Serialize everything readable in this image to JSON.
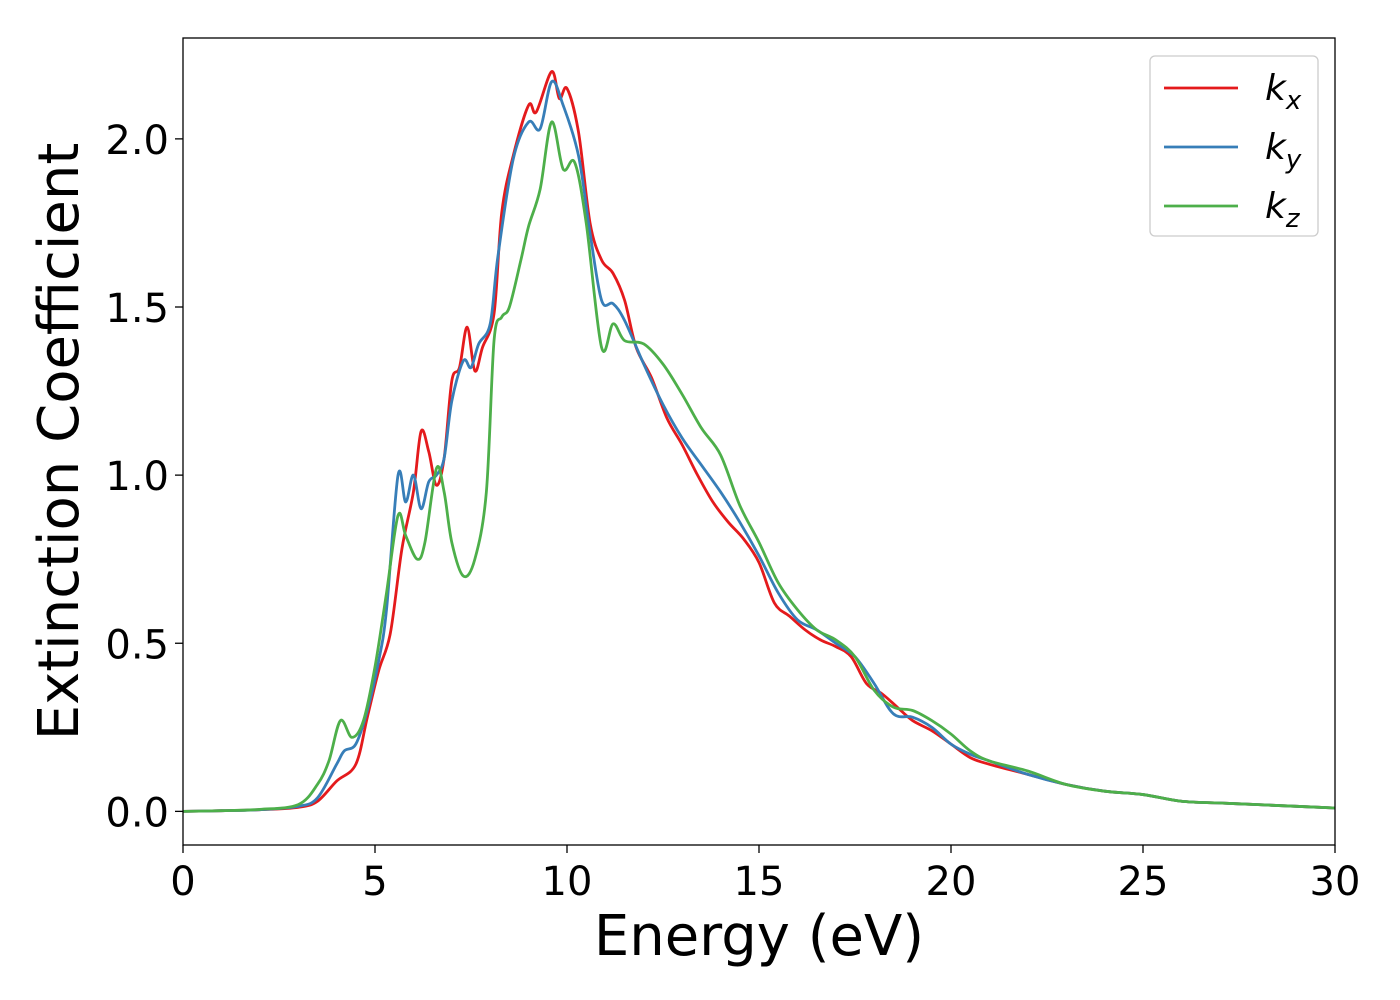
{
  "chart_data": {
    "type": "line",
    "title": "",
    "xlabel": "Energy (eV)",
    "ylabel": "Extinction Coefficient",
    "xlim": [
      0,
      30
    ],
    "ylim": [
      -0.1,
      2.3
    ],
    "xticks": [
      0,
      5,
      10,
      15,
      20,
      25,
      30
    ],
    "xtick_labels": [
      "0",
      "5",
      "10",
      "15",
      "20",
      "25",
      "30"
    ],
    "yticks": [
      0.0,
      0.5,
      1.0,
      1.5,
      2.0
    ],
    "ytick_labels": [
      "0.0",
      "0.5",
      "1.0",
      "1.5",
      "2.0"
    ],
    "grid": false,
    "legend_position": "top-right",
    "series": [
      {
        "name": "k",
        "subscript": "x",
        "color": "#e41a1c",
        "points": [
          [
            0,
            0
          ],
          [
            1,
            0.002
          ],
          [
            2,
            0.005
          ],
          [
            3,
            0.012
          ],
          [
            3.5,
            0.03
          ],
          [
            4,
            0.09
          ],
          [
            4.5,
            0.14
          ],
          [
            4.8,
            0.28
          ],
          [
            5.1,
            0.42
          ],
          [
            5.4,
            0.53
          ],
          [
            5.7,
            0.78
          ],
          [
            6,
            0.95
          ],
          [
            6.2,
            1.13
          ],
          [
            6.4,
            1.07
          ],
          [
            6.6,
            0.97
          ],
          [
            6.8,
            1.05
          ],
          [
            7,
            1.28
          ],
          [
            7.2,
            1.32
          ],
          [
            7.4,
            1.44
          ],
          [
            7.6,
            1.31
          ],
          [
            7.8,
            1.38
          ],
          [
            8.1,
            1.48
          ],
          [
            8.3,
            1.78
          ],
          [
            8.6,
            1.95
          ],
          [
            9.0,
            2.1
          ],
          [
            9.2,
            2.08
          ],
          [
            9.6,
            2.2
          ],
          [
            9.8,
            2.12
          ],
          [
            10,
            2.15
          ],
          [
            10.3,
            2.02
          ],
          [
            10.6,
            1.75
          ],
          [
            10.9,
            1.64
          ],
          [
            11.2,
            1.6
          ],
          [
            11.5,
            1.52
          ],
          [
            11.8,
            1.38
          ],
          [
            12.2,
            1.29
          ],
          [
            12.6,
            1.17
          ],
          [
            13,
            1.09
          ],
          [
            13.4,
            1.0
          ],
          [
            13.8,
            0.92
          ],
          [
            14.2,
            0.86
          ],
          [
            14.6,
            0.81
          ],
          [
            15,
            0.74
          ],
          [
            15.4,
            0.62
          ],
          [
            15.8,
            0.58
          ],
          [
            16.2,
            0.54
          ],
          [
            16.6,
            0.51
          ],
          [
            17,
            0.49
          ],
          [
            17.4,
            0.46
          ],
          [
            17.8,
            0.38
          ],
          [
            18.2,
            0.35
          ],
          [
            18.6,
            0.31
          ],
          [
            19,
            0.27
          ],
          [
            19.5,
            0.24
          ],
          [
            20,
            0.2
          ],
          [
            20.5,
            0.16
          ],
          [
            21,
            0.14
          ],
          [
            22,
            0.11
          ],
          [
            23,
            0.08
          ],
          [
            24,
            0.06
          ],
          [
            25,
            0.05
          ],
          [
            26,
            0.03
          ],
          [
            27,
            0.025
          ],
          [
            28,
            0.02
          ],
          [
            29,
            0.015
          ],
          [
            30,
            0.01
          ]
        ]
      },
      {
        "name": "k",
        "subscript": "y",
        "color": "#377eb8",
        "points": [
          [
            0,
            0
          ],
          [
            1,
            0.002
          ],
          [
            2,
            0.005
          ],
          [
            3,
            0.015
          ],
          [
            3.5,
            0.04
          ],
          [
            4,
            0.14
          ],
          [
            4.2,
            0.18
          ],
          [
            4.5,
            0.2
          ],
          [
            4.8,
            0.3
          ],
          [
            5.1,
            0.45
          ],
          [
            5.3,
            0.6
          ],
          [
            5.6,
            1.0
          ],
          [
            5.8,
            0.92
          ],
          [
            6,
            1.0
          ],
          [
            6.2,
            0.9
          ],
          [
            6.4,
            0.98
          ],
          [
            6.6,
            1.0
          ],
          [
            6.8,
            1.05
          ],
          [
            7,
            1.22
          ],
          [
            7.3,
            1.34
          ],
          [
            7.5,
            1.32
          ],
          [
            7.7,
            1.39
          ],
          [
            8.0,
            1.45
          ],
          [
            8.2,
            1.65
          ],
          [
            8.6,
            1.94
          ],
          [
            9.0,
            2.05
          ],
          [
            9.3,
            2.03
          ],
          [
            9.6,
            2.17
          ],
          [
            9.9,
            2.1
          ],
          [
            10.3,
            1.95
          ],
          [
            10.6,
            1.72
          ],
          [
            10.9,
            1.52
          ],
          [
            11.2,
            1.51
          ],
          [
            11.5,
            1.46
          ],
          [
            12,
            1.33
          ],
          [
            12.5,
            1.21
          ],
          [
            13,
            1.11
          ],
          [
            13.5,
            1.03
          ],
          [
            14,
            0.95
          ],
          [
            14.5,
            0.86
          ],
          [
            15,
            0.76
          ],
          [
            15.5,
            0.65
          ],
          [
            16,
            0.57
          ],
          [
            16.5,
            0.54
          ],
          [
            17,
            0.5
          ],
          [
            17.5,
            0.46
          ],
          [
            18,
            0.38
          ],
          [
            18.5,
            0.29
          ],
          [
            19,
            0.28
          ],
          [
            19.5,
            0.25
          ],
          [
            20,
            0.2
          ],
          [
            20.5,
            0.17
          ],
          [
            21,
            0.15
          ],
          [
            22,
            0.11
          ],
          [
            23,
            0.08
          ],
          [
            24,
            0.06
          ],
          [
            25,
            0.05
          ],
          [
            26,
            0.03
          ],
          [
            27,
            0.025
          ],
          [
            28,
            0.02
          ],
          [
            29,
            0.015
          ],
          [
            30,
            0.01
          ]
        ]
      },
      {
        "name": "k",
        "subscript": "z",
        "color": "#4daf4a",
        "points": [
          [
            0,
            0
          ],
          [
            1,
            0.002
          ],
          [
            2,
            0.006
          ],
          [
            3,
            0.02
          ],
          [
            3.5,
            0.08
          ],
          [
            3.8,
            0.15
          ],
          [
            4.1,
            0.27
          ],
          [
            4.4,
            0.22
          ],
          [
            4.7,
            0.27
          ],
          [
            5.0,
            0.43
          ],
          [
            5.3,
            0.65
          ],
          [
            5.6,
            0.88
          ],
          [
            5.8,
            0.82
          ],
          [
            6.1,
            0.75
          ],
          [
            6.3,
            0.8
          ],
          [
            6.6,
            1.02
          ],
          [
            6.8,
            0.95
          ],
          [
            7,
            0.8
          ],
          [
            7.3,
            0.7
          ],
          [
            7.6,
            0.75
          ],
          [
            7.9,
            0.95
          ],
          [
            8.1,
            1.4
          ],
          [
            8.3,
            1.47
          ],
          [
            8.5,
            1.5
          ],
          [
            8.8,
            1.64
          ],
          [
            9.0,
            1.74
          ],
          [
            9.3,
            1.85
          ],
          [
            9.6,
            2.05
          ],
          [
            9.9,
            1.91
          ],
          [
            10.2,
            1.93
          ],
          [
            10.5,
            1.75
          ],
          [
            10.9,
            1.38
          ],
          [
            11.2,
            1.45
          ],
          [
            11.5,
            1.4
          ],
          [
            12,
            1.39
          ],
          [
            12.5,
            1.33
          ],
          [
            13,
            1.24
          ],
          [
            13.5,
            1.14
          ],
          [
            14,
            1.06
          ],
          [
            14.5,
            0.91
          ],
          [
            15,
            0.8
          ],
          [
            15.5,
            0.68
          ],
          [
            16,
            0.6
          ],
          [
            16.5,
            0.54
          ],
          [
            17,
            0.51
          ],
          [
            17.5,
            0.46
          ],
          [
            18,
            0.36
          ],
          [
            18.5,
            0.31
          ],
          [
            19,
            0.3
          ],
          [
            19.5,
            0.27
          ],
          [
            20,
            0.23
          ],
          [
            20.5,
            0.18
          ],
          [
            21,
            0.15
          ],
          [
            22,
            0.12
          ],
          [
            23,
            0.08
          ],
          [
            24,
            0.06
          ],
          [
            25,
            0.05
          ],
          [
            26,
            0.03
          ],
          [
            27,
            0.025
          ],
          [
            28,
            0.02
          ],
          [
            29,
            0.015
          ],
          [
            30,
            0.01
          ]
        ]
      }
    ]
  }
}
